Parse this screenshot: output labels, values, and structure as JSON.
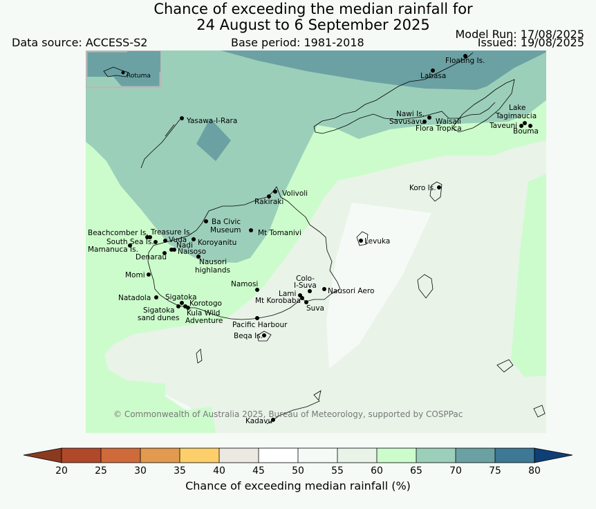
{
  "header": {
    "title_line1": "Chance of exceeding the median rainfall for",
    "title_line2": "24 August to 6 September 2025",
    "data_source": "Data source: ACCESS-S2",
    "base_period": "Base period: 1981-2018",
    "model_run": "Model Run: 17/08/2025",
    "issued": "Issued: 19/08/2025"
  },
  "map": {
    "inset_label": "Rotuma",
    "copyright": "© Commonwealth of Australia 2025, Bureau of Meteorology, supported by COSPPac",
    "places": [
      {
        "id": "floating-is",
        "label": "Floating Is."
      },
      {
        "id": "labasa",
        "label": "Labasa"
      },
      {
        "id": "nawi-is",
        "label": "Nawi Is."
      },
      {
        "id": "savusavu",
        "label": "Savusavu"
      },
      {
        "id": "waisali",
        "label": "Waisali"
      },
      {
        "id": "flora-tropica",
        "label": "Flora Tropica"
      },
      {
        "id": "lake-tagimaucia-1",
        "label": "Lake"
      },
      {
        "id": "lake-tagimaucia-2",
        "label": "Tagimaucia"
      },
      {
        "id": "taveuni",
        "label": "Taveuni"
      },
      {
        "id": "bouma",
        "label": "Bouma"
      },
      {
        "id": "yasawa-i-rara",
        "label": "Yasawa-I-Rara"
      },
      {
        "id": "koro-is",
        "label": "Koro Is."
      },
      {
        "id": "volivoli",
        "label": "Volivoli"
      },
      {
        "id": "rakiraki",
        "label": "Rakiraki"
      },
      {
        "id": "ba-civic-museum-1",
        "label": "Ba Civic"
      },
      {
        "id": "ba-civic-museum-2",
        "label": "Museum"
      },
      {
        "id": "mt-tomanivi",
        "label": "Mt Tomanivi"
      },
      {
        "id": "beachcomber-is",
        "label": "Beachcomber Is."
      },
      {
        "id": "treasure-is",
        "label": "Treasure Is."
      },
      {
        "id": "south-sea-is",
        "label": "South Sea Is."
      },
      {
        "id": "vuda",
        "label": "Vuda"
      },
      {
        "id": "koroyanitu",
        "label": "Koroyanitu"
      },
      {
        "id": "nadi",
        "label": "Nadi"
      },
      {
        "id": "mamanuca-is",
        "label": "Mamanuca Is."
      },
      {
        "id": "naisoso",
        "label": "Naisoso"
      },
      {
        "id": "denarau",
        "label": "Denarau"
      },
      {
        "id": "nausori-highlands-1",
        "label": "Nausori"
      },
      {
        "id": "nausori-highlands-2",
        "label": "highlands"
      },
      {
        "id": "levuka",
        "label": "Levuka"
      },
      {
        "id": "momi",
        "label": "Momi"
      },
      {
        "id": "namosi",
        "label": "Namosi"
      },
      {
        "id": "colo-i-suva-1",
        "label": "Colo-"
      },
      {
        "id": "colo-i-suva-2",
        "label": "I-Suva"
      },
      {
        "id": "nausori-aero",
        "label": "Nausori Aero"
      },
      {
        "id": "lami",
        "label": "Lami"
      },
      {
        "id": "mt-korobaba",
        "label": "Mt Korobaba"
      },
      {
        "id": "suva",
        "label": "Suva"
      },
      {
        "id": "natadola",
        "label": "Natadola"
      },
      {
        "id": "sigatoka",
        "label": "Sigatoka"
      },
      {
        "id": "korotogo",
        "label": "Korotogo"
      },
      {
        "id": "sigatoka-sand-dunes-1",
        "label": "Sigatoka"
      },
      {
        "id": "sigatoka-sand-dunes-2",
        "label": "sand dunes"
      },
      {
        "id": "kula-wild-adventure-1",
        "label": "Kula Wild"
      },
      {
        "id": "kula-wild-adventure-2",
        "label": "Adventure"
      },
      {
        "id": "pacific-harbour",
        "label": "Pacific Harbour"
      },
      {
        "id": "beqa-is",
        "label": "Beqa Is."
      },
      {
        "id": "kadavu",
        "label": "Kadavu"
      }
    ]
  },
  "legend": {
    "title": "Chance of exceeding median rainfall (%)",
    "ticks": [
      "20",
      "25",
      "30",
      "35",
      "40",
      "45",
      "50",
      "55",
      "60",
      "65",
      "70",
      "75",
      "80"
    ],
    "colors": [
      "#8b3a1f",
      "#b0482a",
      "#cf6a3a",
      "#e19a4e",
      "#fdcf6a",
      "#ece9e2",
      "#ffffff",
      "#f5faf6",
      "#e9f3e8",
      "#ccfccc",
      "#9ccfba",
      "#6ba1a3",
      "#3d7895",
      "#0f3f77"
    ]
  }
}
